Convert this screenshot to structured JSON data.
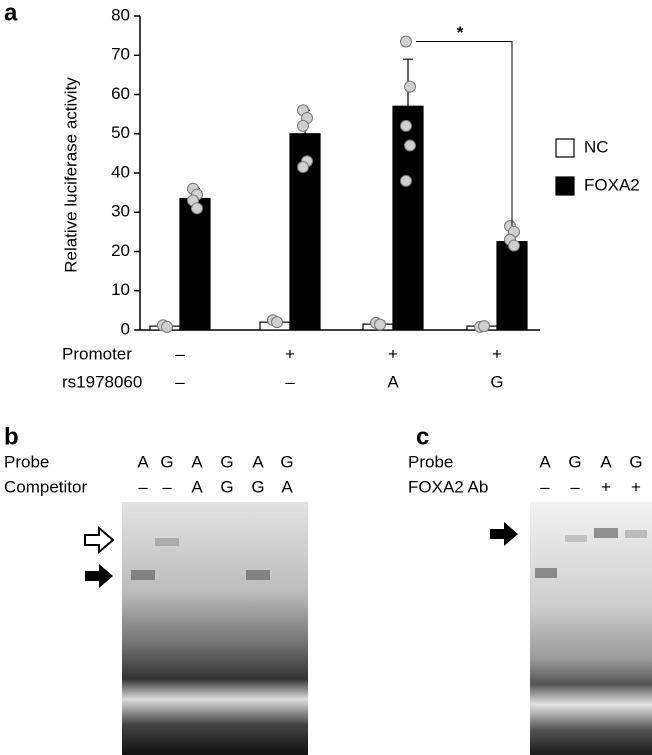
{
  "panel_labels": [
    "a",
    "b",
    "c"
  ],
  "chart_data": {
    "type": "bar",
    "ylabel": "Relative luciferase activity",
    "categories": [
      null,
      null,
      null,
      null
    ],
    "series": [
      {
        "name": "NC",
        "color": "#ffffff",
        "values": [
          1,
          2,
          1.5,
          1
        ],
        "errors": [
          0.3,
          0.5,
          0.4,
          0.2
        ],
        "points": [
          [
            1.2,
            0.8
          ],
          [
            2.5,
            2.0
          ],
          [
            1.8,
            1.4
          ],
          [
            0.8,
            1.0
          ]
        ]
      },
      {
        "name": "FOXA2",
        "color": "#000000",
        "values": [
          33.5,
          50,
          57,
          22.5
        ],
        "errors": [
          2.5,
          6,
          12,
          3
        ],
        "points": [
          [
            36,
            34.5,
            33,
            31
          ],
          [
            56,
            54,
            52,
            43,
            41.5
          ],
          [
            73.5,
            62,
            52,
            47,
            38
          ],
          [
            26.5,
            25,
            23,
            21.5
          ]
        ]
      }
    ],
    "ylim": [
      0,
      80
    ],
    "yticks": [
      0,
      10,
      20,
      30,
      40,
      50,
      60,
      70,
      80
    ],
    "annotation": "*",
    "legend": "right"
  },
  "chart_table": {
    "rows": [
      {
        "label": "Promoter",
        "cells": [
          "–",
          "+",
          "+",
          "+"
        ]
      },
      {
        "label": "rs1978060",
        "cells": [
          "–",
          "–",
          "A",
          "G"
        ]
      }
    ]
  },
  "gel_b": {
    "rows": [
      {
        "label": "Probe",
        "cells": [
          "A",
          "G",
          "A",
          "G",
          "A",
          "G"
        ]
      },
      {
        "label": "Competitor",
        "cells": [
          "–",
          "–",
          "A",
          "G",
          "G",
          "A"
        ]
      }
    ]
  },
  "gel_c": {
    "rows": [
      {
        "label": "Probe",
        "cells": [
          "A",
          "G",
          "A",
          "G"
        ]
      },
      {
        "label": "FOXA2 Ab",
        "cells": [
          "–",
          "–",
          "+",
          "+"
        ]
      }
    ]
  }
}
